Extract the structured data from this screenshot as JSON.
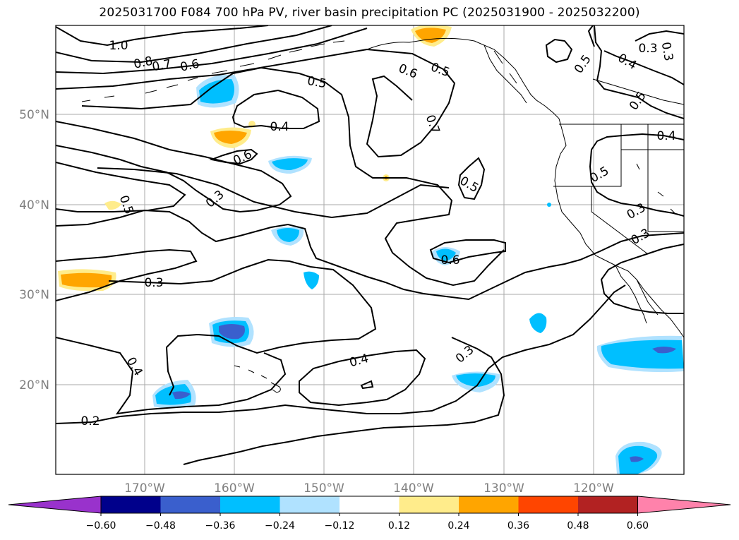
{
  "title": "2025031700 F084 700 hPa PV, river basin precipitation PC (2025031900 - 2025032200)",
  "lon_labels": [
    "170°W",
    "160°W",
    "150°W",
    "140°W",
    "130°W",
    "120°W"
  ],
  "lat_labels": [
    "50°N",
    "40°N",
    "30°N",
    "20°N"
  ],
  "contour_labels": [
    "1.0",
    "0.8",
    "0.7",
    "0.6",
    "0.5",
    "0.6",
    "0.5",
    "0.4",
    "0.3",
    "0.4",
    "0.5",
    "0.5",
    "0.6",
    "0.7",
    "0.5",
    "0.3",
    "0.3",
    "0.6",
    "0.3",
    "0.4",
    "0.4",
    "0.3",
    "0.2",
    "0.5",
    "0.4",
    "0.5",
    "0.3",
    "0.3"
  ],
  "colorbar": {
    "tick_labels": [
      "−0.60",
      "−0.48",
      "−0.36",
      "−0.24",
      "−0.12",
      "0.12",
      "0.24",
      "0.36",
      "0.48",
      "0.60"
    ],
    "colors": [
      "#9932cc",
      "#00008b",
      "#3a5fcd",
      "#00bfff",
      "#b0e2ff",
      "#ffffff",
      "#ffec8b",
      "#ffa500",
      "#ff4500",
      "#b22222",
      "#ff82ab"
    ]
  }
}
